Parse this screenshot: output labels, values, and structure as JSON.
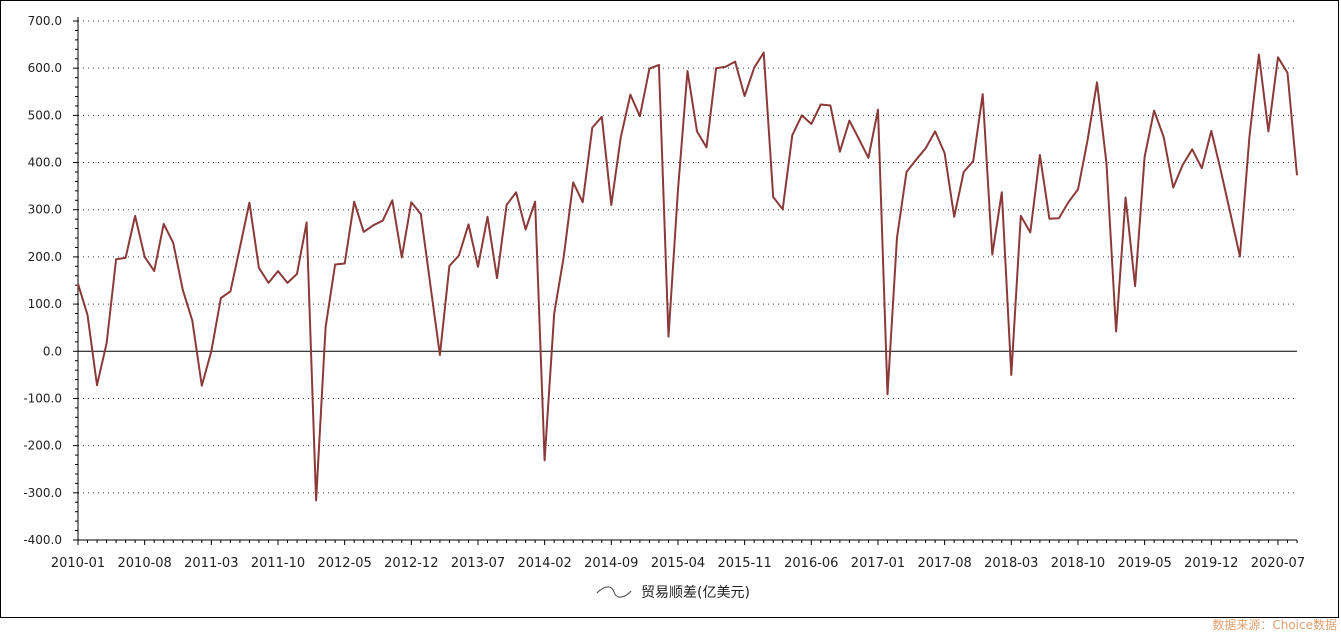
{
  "chart_data": {
    "type": "line",
    "title": "",
    "xlabel": "",
    "ylabel": "",
    "ylim": [
      -400,
      700
    ],
    "yticks": [
      700,
      600,
      500,
      400,
      300,
      200,
      100,
      0,
      -100,
      -200,
      -300,
      -400
    ],
    "ytick_labels": [
      "700.0",
      "600.0",
      "500.0",
      "400.0",
      "300.0",
      "200.0",
      "100.0",
      "0.0",
      "-100.0",
      "-200.0",
      "-300.0",
      "-400.0"
    ],
    "xtick_labels": [
      "2010-01",
      "2010-08",
      "2011-03",
      "2011-10",
      "2012-05",
      "2012-12",
      "2013-07",
      "2014-02",
      "2014-09",
      "2015-04",
      "2015-11",
      "2016-06",
      "2017-01",
      "2017-08",
      "2018-03",
      "2018-10",
      "2019-05",
      "2019-12",
      "2020-07"
    ],
    "grid": true,
    "legend_position": "bottom-center",
    "series": [
      {
        "name": "贸易顺差(亿美元)",
        "color": "#8b3a3a",
        "values": [
          143,
          77,
          -72,
          17,
          195,
          198,
          287,
          200,
          170,
          270,
          230,
          130,
          65,
          -73,
          0,
          113,
          127,
          220,
          315,
          177,
          145,
          170,
          145,
          164,
          273,
          -316,
          51,
          184,
          186,
          317,
          253,
          267,
          277,
          320,
          199,
          316,
          291,
          140,
          -8,
          181,
          203,
          269,
          179,
          285,
          155,
          310,
          337,
          258,
          317,
          -231,
          80,
          200,
          358,
          316,
          474,
          497,
          310,
          454,
          544,
          498,
          599,
          607,
          31,
          343,
          594,
          466,
          432,
          600,
          603,
          614,
          541,
          601,
          633,
          327,
          301,
          458,
          500,
          482,
          523,
          521,
          423,
          489,
          450,
          410,
          512,
          -91,
          241,
          380,
          406,
          430,
          466,
          420,
          285,
          380,
          403,
          545,
          205,
          337,
          -50,
          287,
          252,
          416,
          281,
          282,
          316,
          343,
          447,
          570,
          398,
          42,
          326,
          138,
          412,
          510,
          454,
          347,
          395,
          428,
          388,
          467,
          383,
          293,
          201,
          454,
          629,
          466,
          623,
          590,
          373
        ]
      }
    ],
    "source": "数据来源：Choice数据"
  }
}
